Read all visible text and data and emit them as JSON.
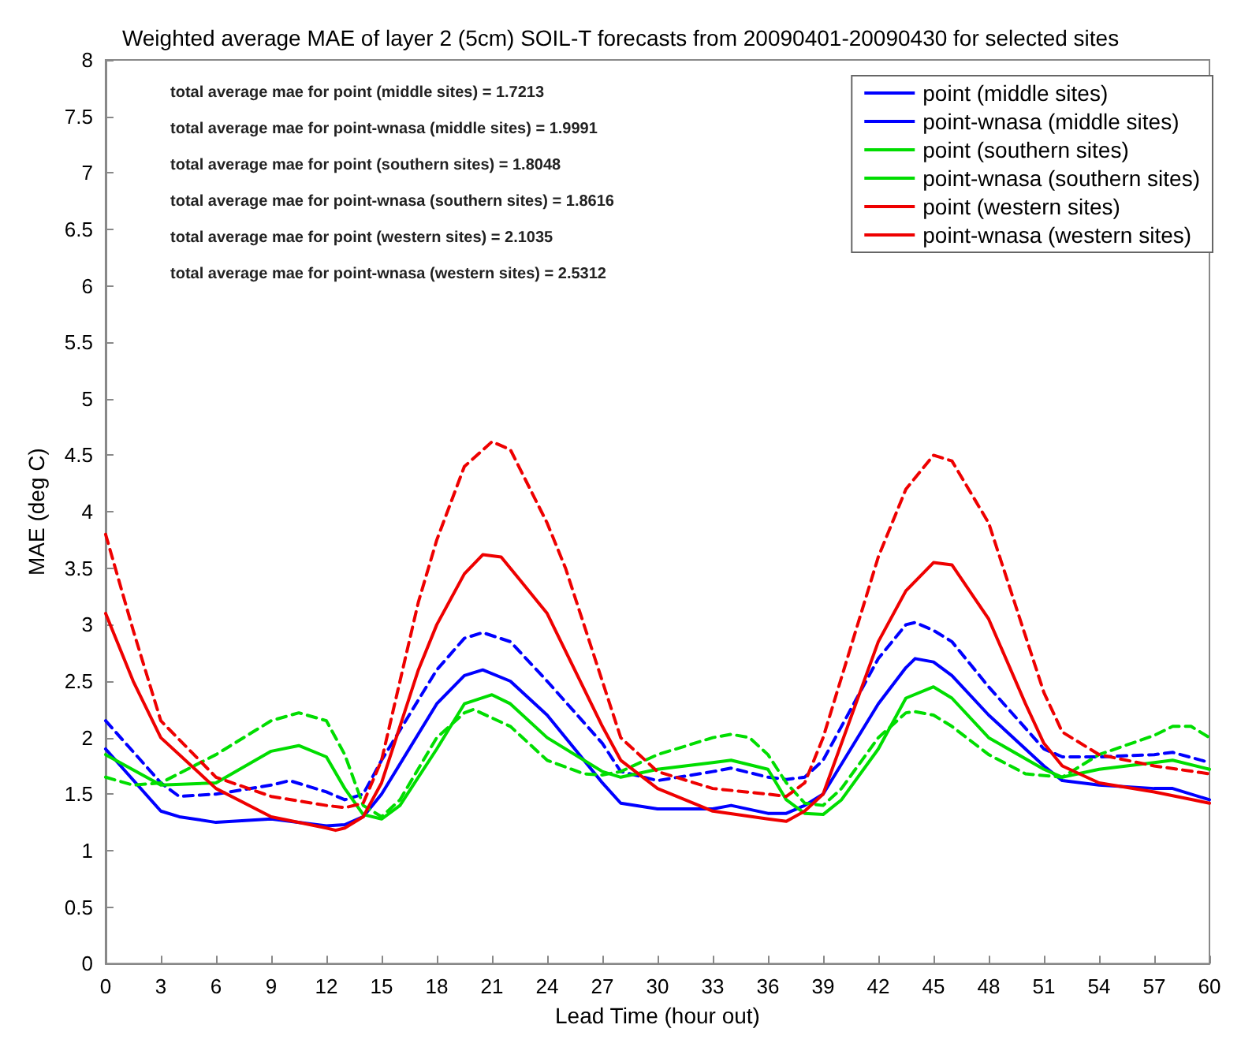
{
  "chart_data": {
    "type": "line",
    "title": "Weighted average MAE of layer 2 (5cm) SOIL-T forecasts from 20090401-20090430 for selected sites",
    "xlabel": "Lead Time (hour out)",
    "ylabel": "MAE (deg C)",
    "xlim": [
      0,
      60
    ],
    "ylim": [
      0,
      8
    ],
    "xticks": [
      0,
      3,
      6,
      9,
      12,
      15,
      18,
      21,
      24,
      27,
      30,
      33,
      36,
      39,
      42,
      45,
      48,
      51,
      54,
      57,
      60
    ],
    "yticks": [
      0,
      0.5,
      1,
      1.5,
      2,
      2.5,
      3,
      3.5,
      4,
      4.5,
      5,
      5.5,
      6,
      6.5,
      7,
      7.5,
      8
    ],
    "grid": false,
    "legend": "top right",
    "annotations": [
      "total average mae for point (middle sites) = 1.7213",
      "total average mae for point-wnasa (middle sites) = 1.9991",
      "total average mae for point (southern sites) = 1.8048",
      "total average mae for point-wnasa (southern sites) = 1.8616",
      "total average mae for point (western sites) = 2.1035",
      "total average mae for point-wnasa (western sites) = 2.5312"
    ],
    "series": [
      {
        "name": "point (middle sites)",
        "color": "#0000ff",
        "line_style": "solid",
        "x": [
          0,
          3,
          4,
          6,
          9,
          12,
          13,
          14,
          15,
          18,
          19.5,
          20.5,
          22,
          24,
          27,
          28,
          30,
          33,
          34,
          36,
          37,
          38,
          39,
          42,
          43.5,
          44,
          45,
          46,
          48,
          51,
          52,
          54,
          57,
          58,
          60
        ],
        "values": [
          1.9,
          1.35,
          1.3,
          1.25,
          1.28,
          1.22,
          1.23,
          1.3,
          1.5,
          2.3,
          2.55,
          2.6,
          2.5,
          2.2,
          1.6,
          1.42,
          1.37,
          1.37,
          1.4,
          1.33,
          1.33,
          1.4,
          1.5,
          2.3,
          2.62,
          2.7,
          2.67,
          2.55,
          2.2,
          1.75,
          1.62,
          1.58,
          1.55,
          1.55,
          1.45
        ]
      },
      {
        "name": "point-wnasa (middle sites)",
        "color": "#0000ff",
        "line_style": "dashed",
        "x": [
          0,
          3,
          4,
          6,
          9,
          10,
          12,
          13,
          14,
          15,
          18,
          19.5,
          20.5,
          22,
          24,
          27,
          28,
          30,
          33,
          34,
          36,
          37,
          38,
          39,
          42,
          43.5,
          44,
          45,
          46,
          48,
          51,
          52,
          54,
          57,
          58,
          60
        ],
        "values": [
          2.15,
          1.6,
          1.48,
          1.5,
          1.58,
          1.62,
          1.52,
          1.45,
          1.5,
          1.8,
          2.6,
          2.88,
          2.93,
          2.85,
          2.5,
          1.95,
          1.7,
          1.62,
          1.7,
          1.73,
          1.65,
          1.63,
          1.65,
          1.8,
          2.7,
          3.0,
          3.02,
          2.95,
          2.85,
          2.45,
          1.9,
          1.83,
          1.83,
          1.85,
          1.87,
          1.78
        ]
      },
      {
        "name": "point (southern sites)",
        "color": "#00dd00",
        "line_style": "solid",
        "x": [
          0,
          3,
          6,
          9,
          10.5,
          12,
          13,
          14,
          15,
          16,
          18,
          19.5,
          21,
          22,
          24,
          27,
          28,
          30,
          33,
          34,
          36,
          37,
          38,
          39,
          40,
          42,
          43.5,
          45,
          46,
          48,
          51,
          52,
          54,
          57,
          58,
          60
        ],
        "values": [
          1.85,
          1.58,
          1.6,
          1.88,
          1.93,
          1.83,
          1.55,
          1.32,
          1.28,
          1.4,
          1.9,
          2.3,
          2.38,
          2.3,
          2.0,
          1.7,
          1.65,
          1.72,
          1.78,
          1.8,
          1.72,
          1.45,
          1.33,
          1.32,
          1.45,
          1.9,
          2.35,
          2.45,
          2.35,
          2.0,
          1.72,
          1.65,
          1.72,
          1.78,
          1.8,
          1.72
        ]
      },
      {
        "name": "point-wnasa (southern sites)",
        "color": "#00dd00",
        "line_style": "dashed",
        "x": [
          0,
          1.5,
          3,
          6,
          9,
          10.5,
          12,
          13,
          14,
          15,
          16,
          18,
          19.5,
          20,
          22,
          24,
          26,
          27,
          28,
          30,
          33,
          34,
          35,
          36,
          37,
          38,
          39,
          40,
          42,
          43.5,
          44,
          45,
          46,
          48,
          50,
          52,
          54,
          57,
          58,
          59,
          60
        ],
        "values": [
          1.65,
          1.58,
          1.6,
          1.85,
          2.15,
          2.22,
          2.15,
          1.85,
          1.4,
          1.3,
          1.45,
          2.0,
          2.22,
          2.25,
          2.1,
          1.8,
          1.68,
          1.67,
          1.7,
          1.85,
          2.0,
          2.03,
          2.0,
          1.85,
          1.6,
          1.42,
          1.4,
          1.55,
          2.0,
          2.22,
          2.23,
          2.2,
          2.1,
          1.85,
          1.68,
          1.65,
          1.85,
          2.02,
          2.1,
          2.1,
          2.0
        ]
      },
      {
        "name": "point (western sites)",
        "color": "#ee0000",
        "line_style": "solid",
        "x": [
          0,
          1.5,
          3,
          6,
          9,
          12,
          12.5,
          13,
          14,
          15,
          17,
          18,
          19.5,
          20.5,
          21.5,
          22.5,
          24,
          27,
          28,
          30,
          33,
          36,
          37,
          38,
          39,
          42,
          43.5,
          45,
          46,
          48,
          50,
          51,
          52,
          54,
          57,
          60
        ],
        "values": [
          3.1,
          2.5,
          2.0,
          1.55,
          1.3,
          1.2,
          1.18,
          1.2,
          1.3,
          1.6,
          2.6,
          3.0,
          3.45,
          3.62,
          3.6,
          3.4,
          3.1,
          2.1,
          1.8,
          1.55,
          1.35,
          1.28,
          1.26,
          1.35,
          1.5,
          2.85,
          3.3,
          3.55,
          3.53,
          3.05,
          2.3,
          1.95,
          1.75,
          1.6,
          1.52,
          1.42
        ]
      },
      {
        "name": "point-wnasa (western sites)",
        "color": "#ee0000",
        "line_style": "dashed",
        "x": [
          0,
          1.5,
          3,
          6,
          9,
          12,
          13,
          14,
          15,
          17,
          18,
          19.5,
          21,
          22,
          24,
          25,
          27,
          28,
          30,
          33,
          36,
          37,
          38,
          39,
          42,
          43.5,
          45,
          46,
          48,
          50,
          51,
          52,
          54,
          57,
          60
        ],
        "values": [
          3.8,
          2.95,
          2.15,
          1.65,
          1.48,
          1.4,
          1.38,
          1.42,
          1.8,
          3.2,
          3.75,
          4.4,
          4.62,
          4.55,
          3.9,
          3.5,
          2.5,
          2.0,
          1.7,
          1.55,
          1.5,
          1.48,
          1.6,
          2.0,
          3.6,
          4.2,
          4.5,
          4.45,
          3.9,
          2.9,
          2.4,
          2.05,
          1.85,
          1.75,
          1.68
        ]
      }
    ]
  }
}
